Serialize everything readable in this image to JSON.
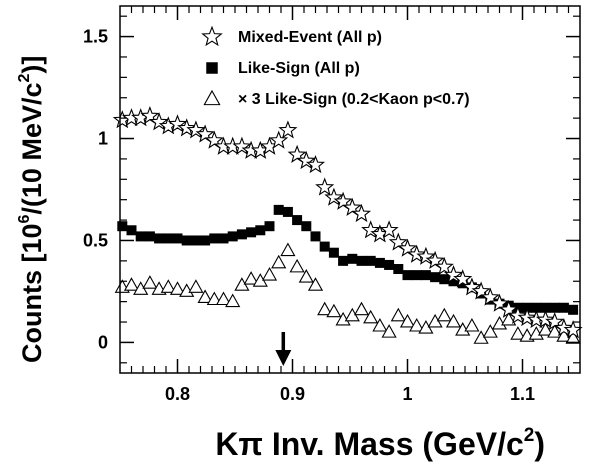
{
  "chart_data": {
    "type": "scatter",
    "xlim": [
      0.75,
      1.15
    ],
    "ylim": [
      -0.15,
      1.65
    ],
    "x_ticks": [
      0.8,
      0.9,
      1.0,
      1.1
    ],
    "x_tick_labels": [
      "0.8",
      "0.9",
      "1",
      "1.1"
    ],
    "y_ticks": [
      0,
      0.5,
      1.0,
      1.5
    ],
    "y_tick_labels": [
      "0",
      "0.5",
      "1",
      "1.5"
    ],
    "xlabel": {
      "main": "Kπ Inv. Mass (GeV/c",
      "sup": "2",
      "end": ")"
    },
    "ylabel": {
      "main": "Counts [10",
      "sup1": "6",
      "mid": "/(10 MeV/c",
      "sup2": "2",
      "end": ")]"
    },
    "legend_position": "top-right",
    "arrow_at_x": 0.892,
    "series": [
      {
        "name": "Mixed-Event (All p)",
        "marker": "open-star",
        "x": [
          0.752,
          0.76,
          0.768,
          0.776,
          0.784,
          0.792,
          0.8,
          0.808,
          0.816,
          0.824,
          0.832,
          0.84,
          0.848,
          0.856,
          0.864,
          0.872,
          0.88,
          0.888,
          0.896,
          0.904,
          0.912,
          0.92,
          0.928,
          0.936,
          0.944,
          0.952,
          0.96,
          0.968,
          0.976,
          0.984,
          0.992,
          1.0,
          1.008,
          1.016,
          1.024,
          1.032,
          1.04,
          1.048,
          1.056,
          1.064,
          1.072,
          1.08,
          1.088,
          1.096,
          1.104,
          1.112,
          1.12,
          1.128,
          1.136,
          1.144
        ],
        "values": [
          1.09,
          1.1,
          1.1,
          1.11,
          1.08,
          1.06,
          1.07,
          1.05,
          1.04,
          1.02,
          0.99,
          0.96,
          0.96,
          0.96,
          0.94,
          0.94,
          0.96,
          0.99,
          1.04,
          0.92,
          0.89,
          0.87,
          0.76,
          0.71,
          0.69,
          0.66,
          0.63,
          0.55,
          0.53,
          0.55,
          0.49,
          0.46,
          0.43,
          0.42,
          0.4,
          0.37,
          0.33,
          0.31,
          0.27,
          0.25,
          0.22,
          0.19,
          0.16,
          0.13,
          0.12,
          0.11,
          0.11,
          0.1,
          0.07,
          0.06
        ]
      },
      {
        "name": "Like-Sign (All p)",
        "marker": "filled-square",
        "x": [
          0.752,
          0.76,
          0.768,
          0.776,
          0.784,
          0.792,
          0.8,
          0.808,
          0.816,
          0.824,
          0.832,
          0.84,
          0.848,
          0.856,
          0.864,
          0.872,
          0.88,
          0.888,
          0.896,
          0.904,
          0.912,
          0.92,
          0.928,
          0.936,
          0.944,
          0.952,
          0.96,
          0.968,
          0.976,
          0.984,
          0.992,
          1.0,
          1.008,
          1.016,
          1.024,
          1.032,
          1.04,
          1.048,
          1.056,
          1.064,
          1.072,
          1.08,
          1.088,
          1.096,
          1.104,
          1.112,
          1.12,
          1.128,
          1.136,
          1.144
        ],
        "values": [
          0.57,
          0.55,
          0.52,
          0.52,
          0.51,
          0.51,
          0.51,
          0.5,
          0.5,
          0.5,
          0.51,
          0.51,
          0.52,
          0.53,
          0.54,
          0.55,
          0.57,
          0.65,
          0.64,
          0.6,
          0.57,
          0.52,
          0.47,
          0.44,
          0.4,
          0.41,
          0.4,
          0.4,
          0.39,
          0.38,
          0.36,
          0.33,
          0.33,
          0.33,
          0.32,
          0.31,
          0.3,
          0.29,
          0.27,
          0.24,
          0.21,
          0.19,
          0.18,
          0.17,
          0.17,
          0.17,
          0.17,
          0.17,
          0.17,
          0.16
        ]
      },
      {
        "name": "× 3 Like-Sign (0.2<Kaon p<0.7)",
        "marker": "open-triangle",
        "x": [
          0.752,
          0.76,
          0.768,
          0.776,
          0.784,
          0.792,
          0.8,
          0.808,
          0.816,
          0.824,
          0.832,
          0.84,
          0.848,
          0.856,
          0.864,
          0.872,
          0.88,
          0.888,
          0.896,
          0.904,
          0.912,
          0.92,
          0.928,
          0.936,
          0.944,
          0.952,
          0.96,
          0.968,
          0.976,
          0.984,
          0.992,
          1.0,
          1.008,
          1.016,
          1.024,
          1.032,
          1.04,
          1.048,
          1.056,
          1.064,
          1.072,
          1.08,
          1.088,
          1.096,
          1.104,
          1.112,
          1.12,
          1.128,
          1.136,
          1.144
        ],
        "values": [
          0.27,
          0.28,
          0.26,
          0.29,
          0.26,
          0.27,
          0.26,
          0.25,
          0.27,
          0.22,
          0.21,
          0.21,
          0.2,
          0.28,
          0.31,
          0.3,
          0.33,
          0.39,
          0.45,
          0.37,
          0.32,
          0.28,
          0.16,
          0.15,
          0.11,
          0.13,
          0.16,
          0.12,
          0.08,
          0.05,
          0.13,
          0.1,
          0.08,
          0.07,
          0.1,
          0.13,
          0.1,
          0.06,
          0.08,
          0.02,
          0.05,
          0.09,
          0.11,
          0.04,
          0.03,
          0.04,
          0.06,
          0.05,
          0.03,
          0.02
        ]
      }
    ]
  }
}
